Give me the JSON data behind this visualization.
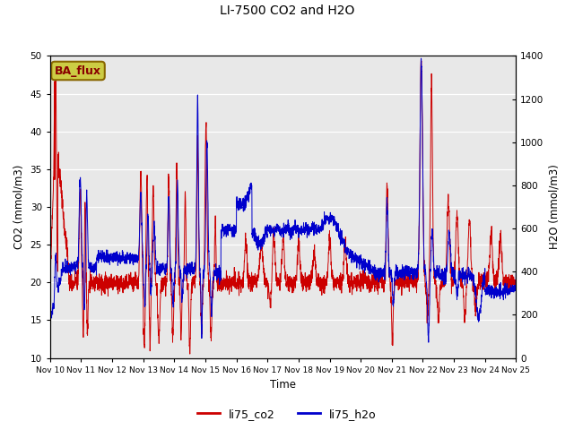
{
  "title": "LI-7500 CO2 and H2O",
  "xlabel": "Time",
  "ylabel_left": "CO2 (mmol/m3)",
  "ylabel_right": "H2O (mmol/m3)",
  "ylim_left": [
    10,
    50
  ],
  "ylim_right": [
    0,
    1400
  ],
  "yticks_left": [
    10,
    15,
    20,
    25,
    30,
    35,
    40,
    45,
    50
  ],
  "yticks_right": [
    0,
    200,
    400,
    600,
    800,
    1000,
    1200,
    1400
  ],
  "xtick_labels": [
    "Nov 10",
    "Nov 11",
    "Nov 12",
    "Nov 13",
    "Nov 14",
    "Nov 15",
    "Nov 16",
    "Nov 17",
    "Nov 18",
    "Nov 19",
    "Nov 20",
    "Nov 21",
    "Nov 22",
    "Nov 23",
    "Nov 24",
    "Nov 25"
  ],
  "legend_labels": [
    "li75_co2",
    "li75_h2o"
  ],
  "co2_color": "#cc0000",
  "h2o_color": "#0000cc",
  "background_color": "#e8e8e8",
  "annotation_text": "BA_flux",
  "annotation_bg": "#cccc44",
  "annotation_border": "#886600",
  "annotation_text_color": "#880000"
}
